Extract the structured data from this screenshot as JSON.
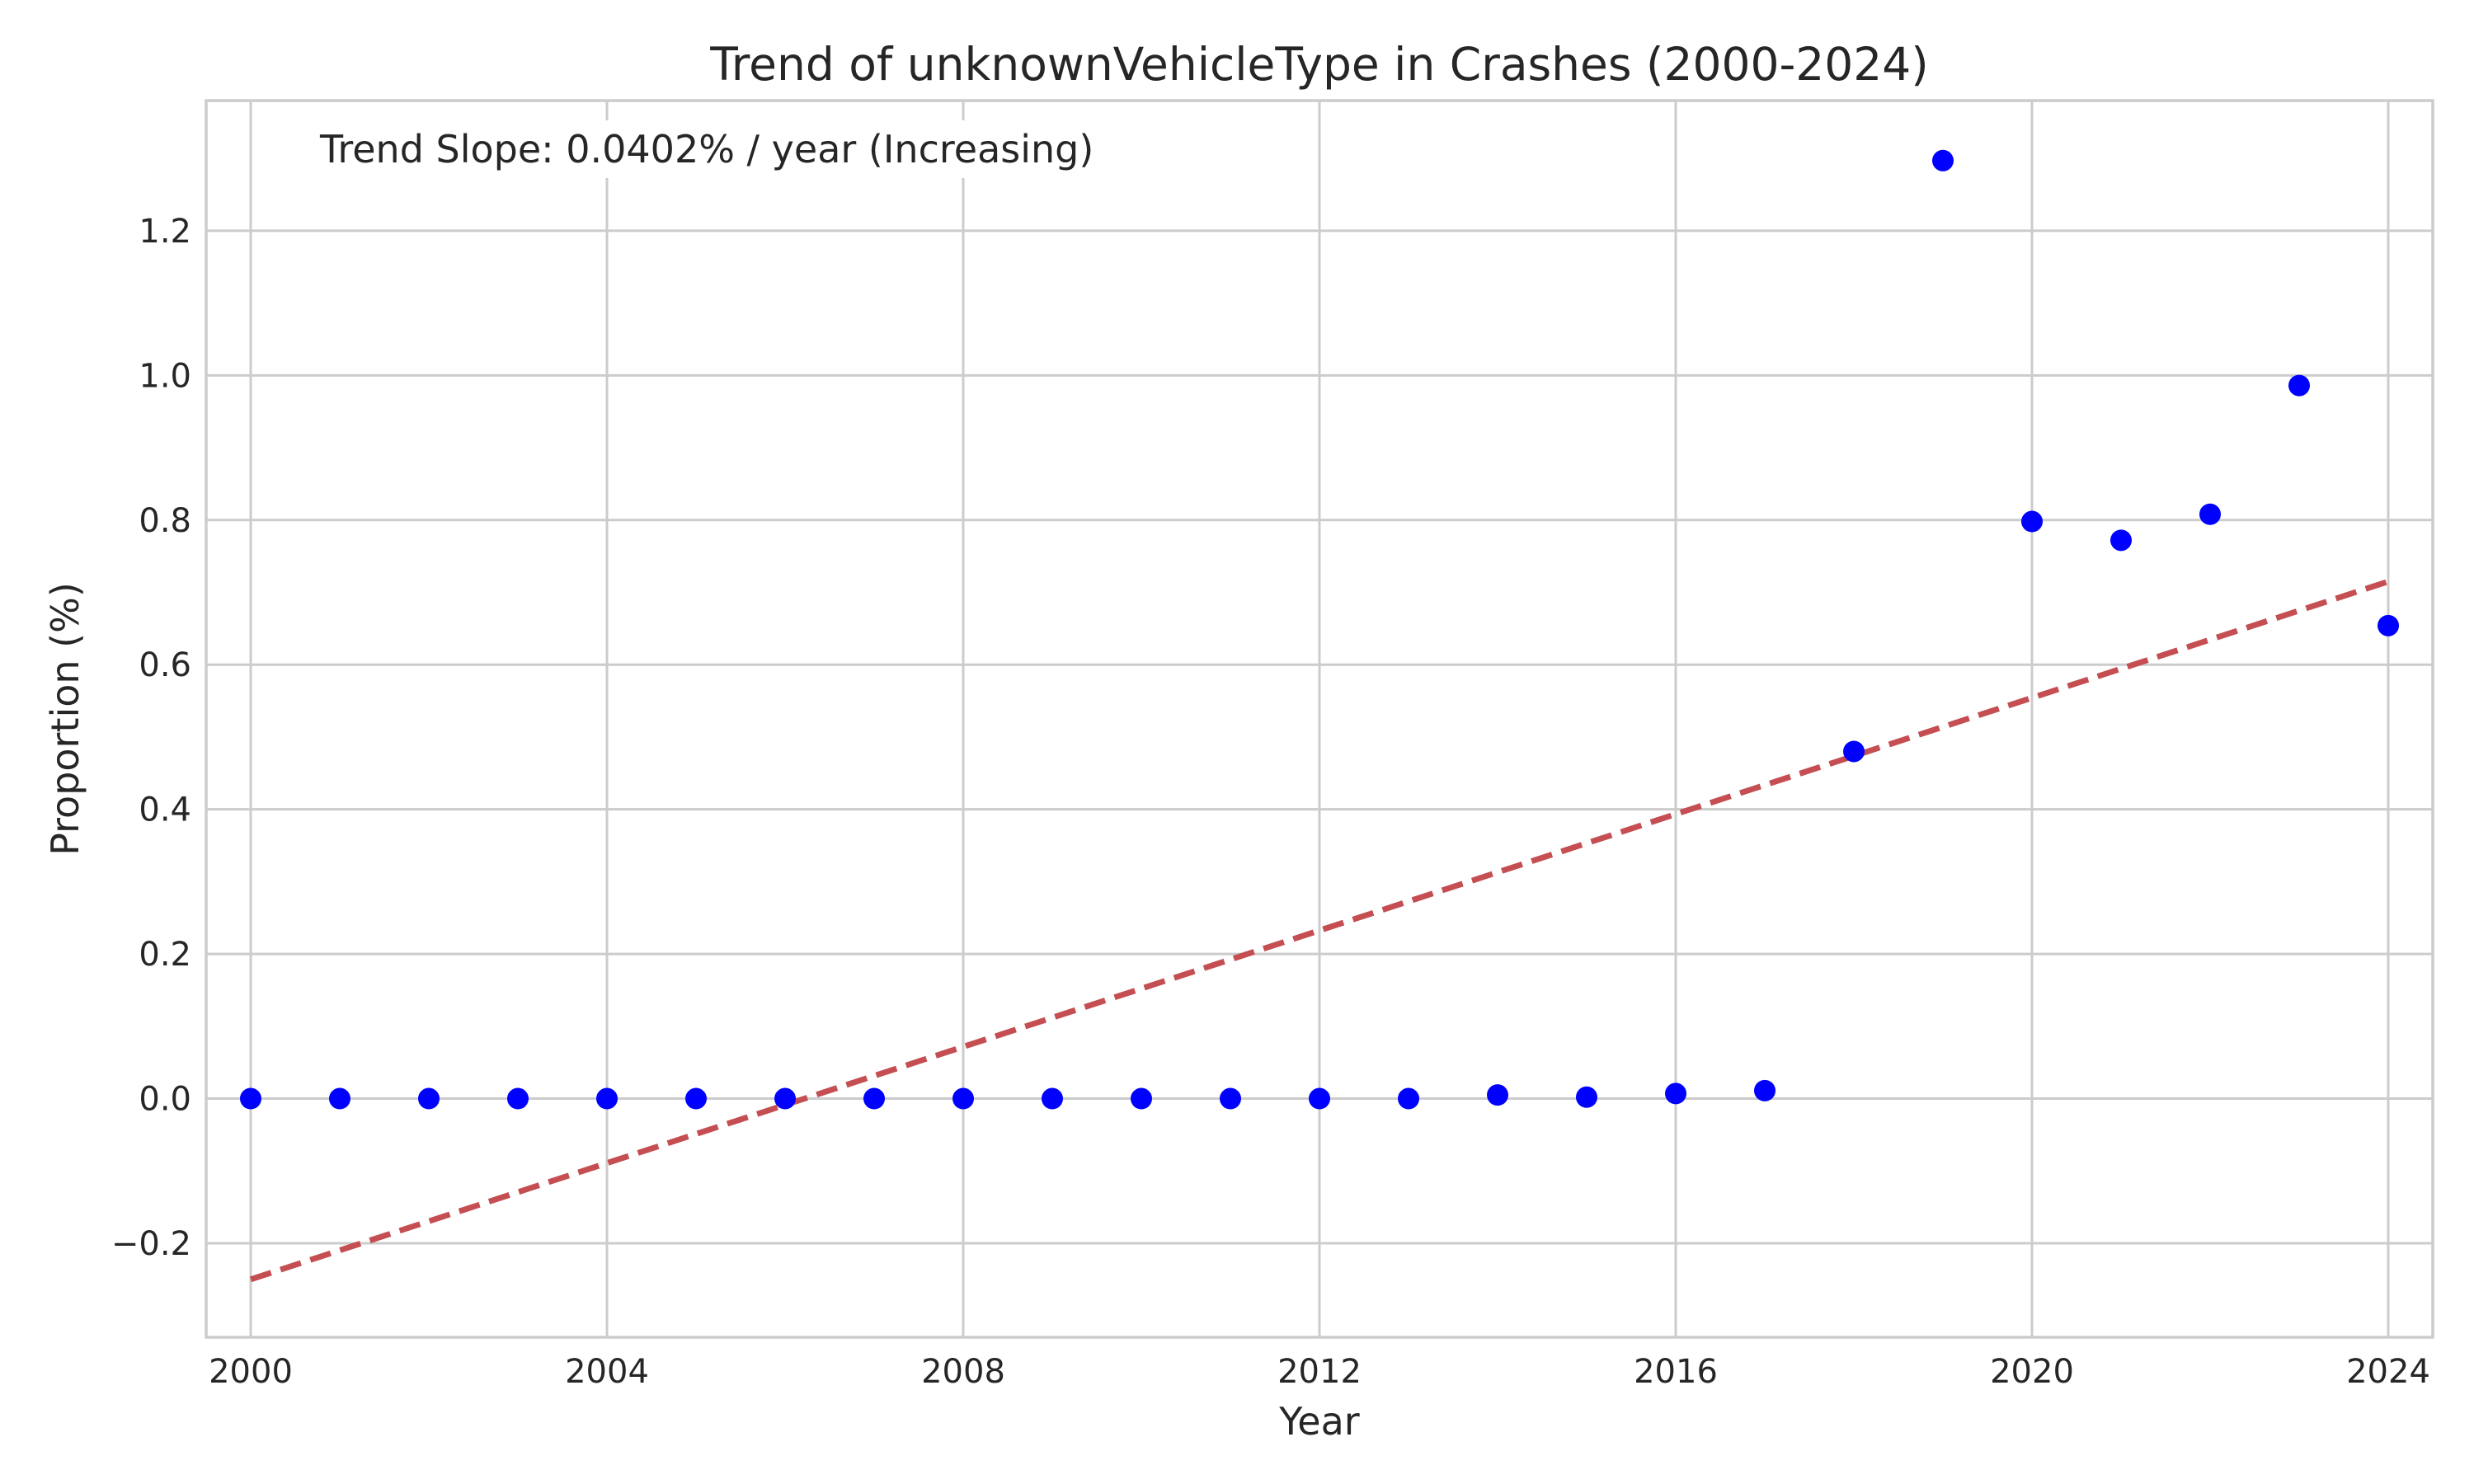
{
  "chart_data": {
    "type": "scatter",
    "title": "Trend of unknownVehicleType in Crashes (2000-2024)",
    "xlabel": "Year",
    "ylabel": "Proportion (%)",
    "xlim": [
      1999.5,
      2024.5
    ],
    "ylim": [
      -0.33,
      1.38
    ],
    "xticks": [
      2000,
      2004,
      2008,
      2012,
      2016,
      2020,
      2024
    ],
    "yticks": [
      -0.2,
      0.0,
      0.2,
      0.4,
      0.6,
      0.8,
      1.0,
      1.2
    ],
    "ytick_labels": [
      "−0.2",
      "0.0",
      "0.2",
      "0.4",
      "0.6",
      "0.8",
      "1.0",
      "1.2"
    ],
    "grid": true,
    "series": [
      {
        "marker_color": "#0000ff",
        "x": [
          2000,
          2001,
          2002,
          2003,
          2004,
          2005,
          2006,
          2007,
          2008,
          2009,
          2010,
          2011,
          2012,
          2013,
          2014,
          2015,
          2016,
          2017,
          2018,
          2019,
          2020,
          2021,
          2022,
          2023,
          2024
        ],
        "y": [
          0.0,
          0.0,
          0.0,
          0.0,
          0.0,
          0.0,
          0.0,
          0.0,
          0.0,
          0.0,
          0.0,
          0.0,
          0.0,
          0.0,
          0.005,
          0.002,
          0.007,
          0.011,
          0.48,
          1.297,
          0.798,
          0.772,
          0.808,
          0.986,
          0.654
        ]
      }
    ],
    "trend_line": {
      "color": "#c44e52",
      "style": "dashed",
      "x": [
        2000,
        2024
      ],
      "y": [
        -0.25,
        0.715
      ]
    },
    "annotation": "Trend Slope: 0.0402% / year (Increasing)"
  }
}
